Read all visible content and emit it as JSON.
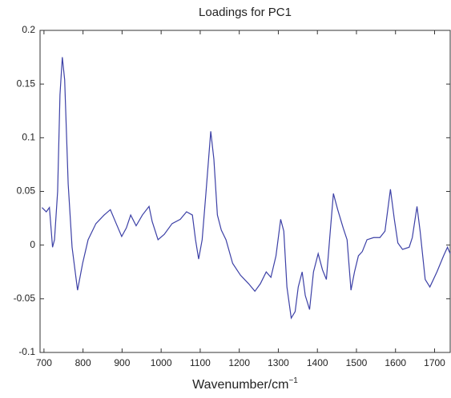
{
  "chart_data": {
    "type": "line",
    "title": "Loadings for PC1",
    "x_label": "Wavenumber/cm",
    "x_label_superscript": "−1",
    "x": [
      695,
      706,
      714,
      722,
      727,
      735,
      741,
      747,
      753,
      762,
      772,
      786,
      799,
      813,
      833,
      854,
      870,
      885,
      899,
      911,
      922,
      936,
      952,
      969,
      977,
      992,
      1008,
      1028,
      1049,
      1065,
      1080,
      1088,
      1096,
      1105,
      1115,
      1127,
      1135,
      1144,
      1154,
      1166,
      1183,
      1203,
      1224,
      1240,
      1254,
      1269,
      1281,
      1294,
      1306,
      1314,
      1322,
      1333,
      1343,
      1351,
      1361,
      1369,
      1380,
      1390,
      1402,
      1413,
      1423,
      1433,
      1441,
      1452,
      1466,
      1476,
      1486,
      1495,
      1505,
      1515,
      1527,
      1544,
      1560,
      1573,
      1587,
      1597,
      1606,
      1618,
      1635,
      1643,
      1655,
      1663,
      1676,
      1688,
      1706,
      1723,
      1733,
      1740
    ],
    "series": [
      {
        "color": "#3c40a6",
        "values": [
          0.035,
          0.031,
          0.035,
          -0.002,
          0.005,
          0.05,
          0.14,
          0.175,
          0.154,
          0.057,
          -0.002,
          -0.042,
          -0.017,
          0.005,
          0.02,
          0.028,
          0.033,
          0.02,
          0.008,
          0.016,
          0.028,
          0.018,
          0.028,
          0.036,
          0.022,
          0.005,
          0.01,
          0.02,
          0.024,
          0.031,
          0.028,
          0.005,
          -0.013,
          0.005,
          0.05,
          0.106,
          0.08,
          0.028,
          0.014,
          0.005,
          -0.017,
          -0.028,
          -0.036,
          -0.043,
          -0.036,
          -0.025,
          -0.03,
          -0.01,
          0.024,
          0.013,
          -0.039,
          -0.068,
          -0.062,
          -0.039,
          -0.025,
          -0.047,
          -0.06,
          -0.025,
          -0.008,
          -0.023,
          -0.032,
          0.013,
          0.048,
          0.033,
          0.016,
          0.005,
          -0.042,
          -0.025,
          -0.01,
          -0.006,
          0.005,
          0.007,
          0.007,
          0.013,
          0.052,
          0.024,
          0.002,
          -0.004,
          -0.002,
          0.007,
          0.036,
          0.013,
          -0.032,
          -0.039,
          -0.025,
          -0.01,
          -0.002,
          -0.008
        ]
      }
    ],
    "xlim": [
      690,
      1740
    ],
    "xticks": [
      700,
      800,
      900,
      1000,
      1100,
      1200,
      1300,
      1400,
      1500,
      1600,
      1700
    ],
    "ylim": [
      -0.1,
      0.2
    ],
    "yticks": [
      -0.1,
      -0.05,
      0,
      0.05,
      0.1,
      0.15,
      0.2
    ]
  }
}
